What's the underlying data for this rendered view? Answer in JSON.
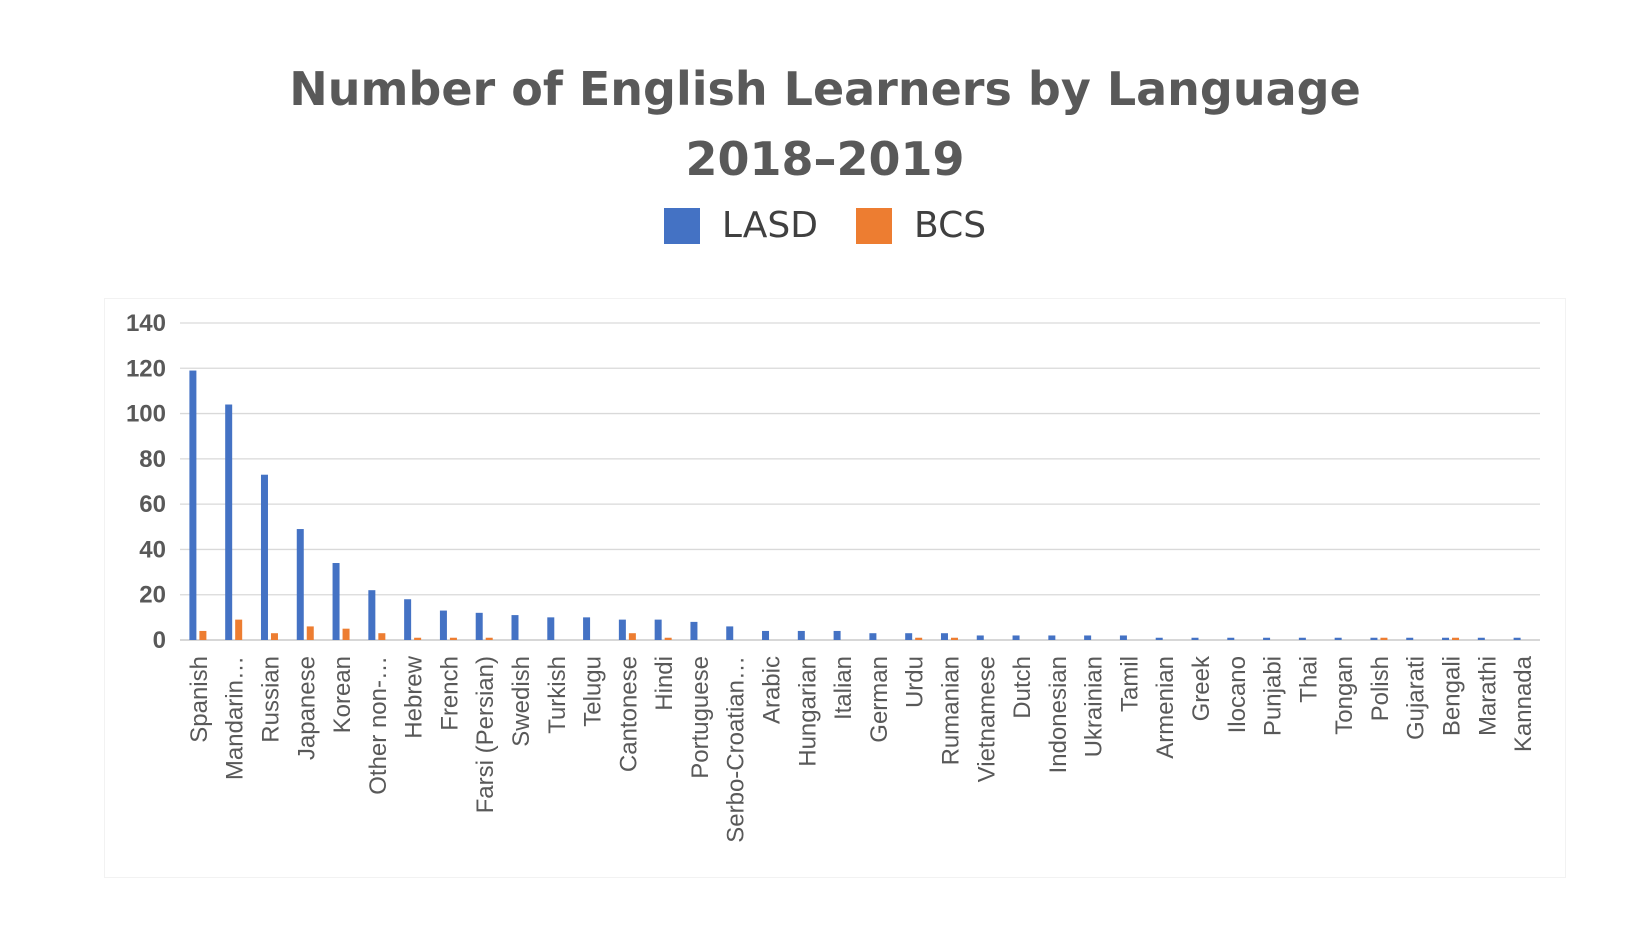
{
  "chart_data": {
    "type": "bar",
    "title": "Number of English Learners by Language",
    "subtitle": "2018–2019",
    "xlabel": "",
    "ylabel": "",
    "ylim": [
      0,
      140
    ],
    "yticks": [
      0,
      20,
      40,
      60,
      80,
      100,
      120,
      140
    ],
    "grid": true,
    "legend_position": "top",
    "categories": [
      "Spanish",
      "Mandarin…",
      "Russian",
      "Japanese",
      "Korean",
      "Other non-…",
      "Hebrew",
      "French",
      "Farsi (Persian)",
      "Swedish",
      "Turkish",
      "Telugu",
      "Cantonese",
      "Hindi",
      "Portuguese",
      "Serbo-Croatian…",
      "Arabic",
      "Hungarian",
      "Italian",
      "German",
      "Urdu",
      "Rumanian",
      "Vietnamese",
      "Dutch",
      "Indonesian",
      "Ukrainian",
      "Tamil",
      "Armenian",
      "Greek",
      "Ilocano",
      "Punjabi",
      "Thai",
      "Tongan",
      "Polish",
      "Gujarati",
      "Bengali",
      "Marathi",
      "Kannada"
    ],
    "series": [
      {
        "name": "LASD",
        "color": "#4472C4",
        "values": [
          119,
          104,
          73,
          49,
          34,
          22,
          18,
          13,
          12,
          11,
          10,
          10,
          9,
          9,
          8,
          6,
          4,
          4,
          4,
          3,
          3,
          3,
          2,
          2,
          2,
          2,
          2,
          1,
          1,
          1,
          1,
          1,
          1,
          1,
          1,
          1,
          1,
          1
        ]
      },
      {
        "name": "BCS",
        "color": "#ED7D31",
        "values": [
          4,
          9,
          3,
          6,
          5,
          3,
          1,
          1,
          1,
          0,
          0,
          0,
          3,
          1,
          0,
          0,
          0,
          0,
          0,
          0,
          1,
          1,
          0,
          0,
          0,
          0,
          0,
          0,
          0,
          0,
          0,
          0,
          0,
          1,
          0,
          1,
          0,
          0
        ]
      }
    ]
  }
}
